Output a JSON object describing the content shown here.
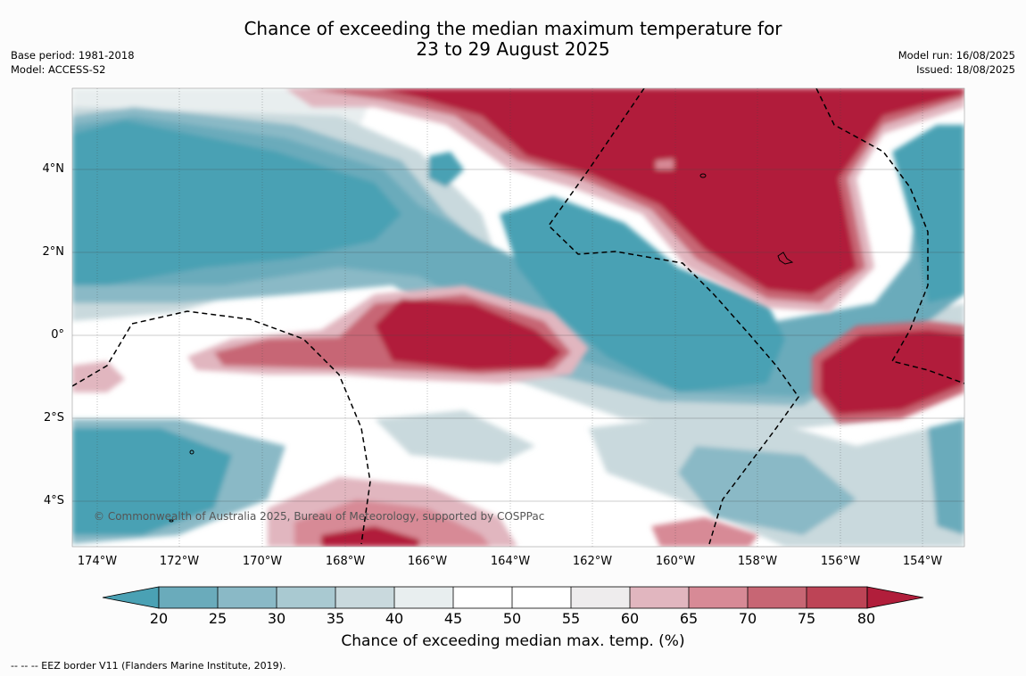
{
  "header": {
    "title_line1": "Chance of exceeding the median maximum temperature for",
    "title_line2": "23 to 29 August 2025",
    "base_period": "Base period: 1981-2018",
    "model": "Model: ACCESS-S2",
    "model_run": "Model run: 16/08/2025",
    "issued": "Issued: 18/08/2025"
  },
  "map": {
    "lat_labels": [
      "4°N",
      "2°N",
      "0°",
      "2°S",
      "4°S"
    ],
    "lon_labels": [
      "174°W",
      "172°W",
      "170°W",
      "168°W",
      "166°W",
      "164°W",
      "162°W",
      "160°W",
      "158°W",
      "156°W",
      "154°W"
    ],
    "copyright": "© Commonwealth of Australia 2025, Bureau of Meteorology, supported by COSPPac"
  },
  "colorbar": {
    "ticks": [
      "20",
      "25",
      "30",
      "35",
      "40",
      "45",
      "50",
      "55",
      "60",
      "65",
      "70",
      "75",
      "80"
    ],
    "colors": {
      "below20": "#4aa1b4",
      "c20_25": "#6aabbb",
      "c25_30": "#8ab9c6",
      "c30_35": "#a9c9d1",
      "c35_40": "#c9d9dd",
      "c40_45": "#e8eeef",
      "c45_50": "#ffffff",
      "c50_55": "#ffffff",
      "c55_60": "#eeeced",
      "c60_65": "#e1b6bf",
      "c65_70": "#d78a96",
      "c70_75": "#c76674",
      "c75_80": "#bd4456",
      "above80": "#b11e3b"
    },
    "label": "Chance of exceeding median max. temp. (%)"
  },
  "footnote": "--  --  -- EEZ border V11 (Flanders Marine Institute, 2019)."
}
